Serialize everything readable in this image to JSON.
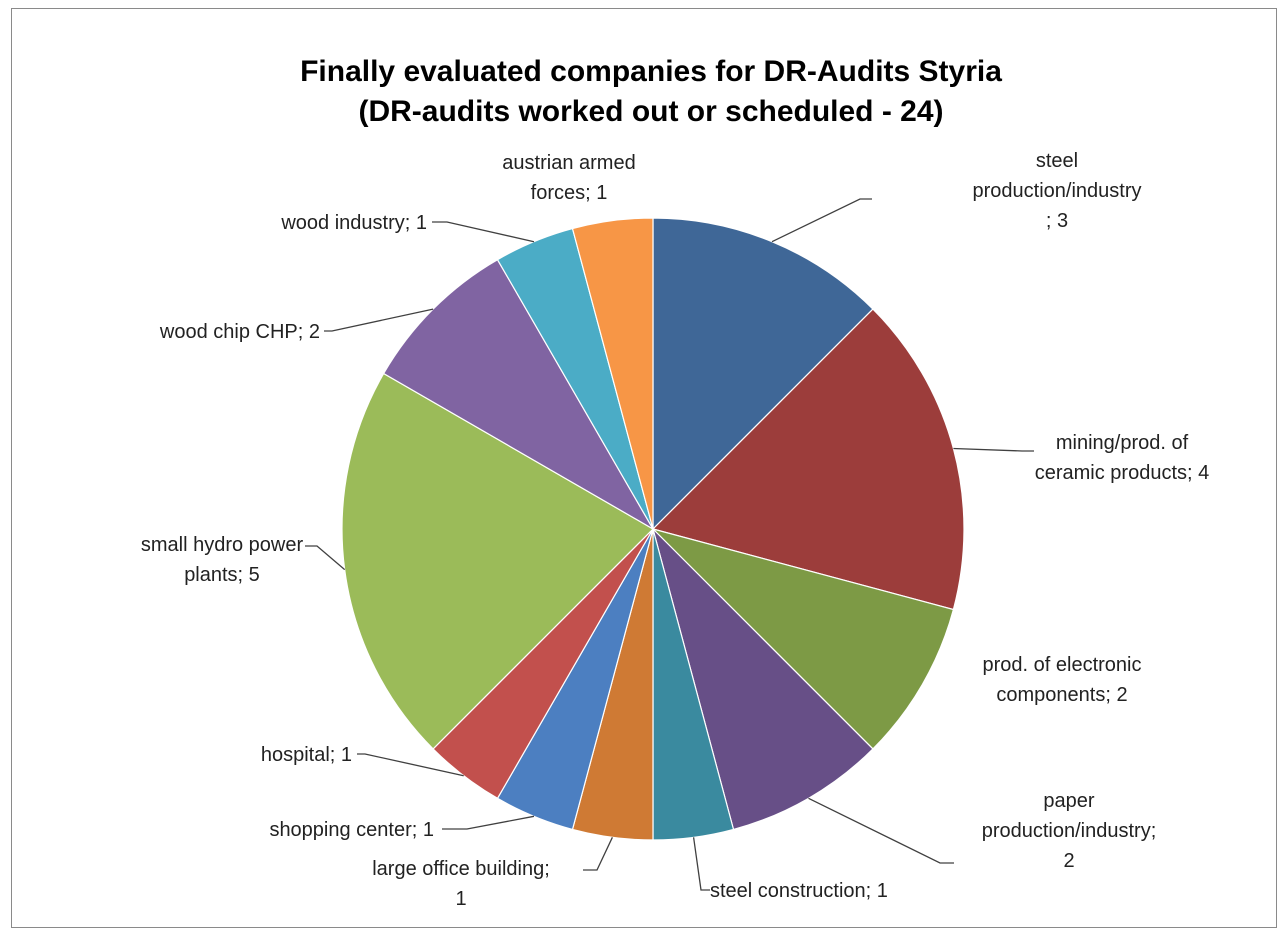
{
  "chart_data": {
    "type": "pie",
    "title": "Finally evaluated companies for DR-Audits Styria",
    "subtitle": "(DR-audits worked out or scheduled - 24)",
    "start": "12 o'clock, clockwise",
    "legend": "none (data labels)",
    "slices": [
      {
        "category": "steel production/industry",
        "value": 3,
        "color": "#3f6797",
        "label_lines": [
          "steel",
          "production/industry",
          "; 3"
        ]
      },
      {
        "category": "mining/prod. of ceramic products",
        "value": 4,
        "color": "#9c3d3b",
        "label_lines": [
          "mining/prod. of",
          "ceramic products; 4"
        ]
      },
      {
        "category": "prod. of electronic components",
        "value": 2,
        "color": "#7d9a45",
        "label_lines": [
          "prod. of electronic",
          "components; 2"
        ]
      },
      {
        "category": "paper production/industry",
        "value": 2,
        "color": "#674f87",
        "label_lines": [
          "paper",
          "production/industry;",
          "2"
        ]
      },
      {
        "category": "steel construction",
        "value": 1,
        "color": "#3a8a9f",
        "label_lines": [
          "steel construction; 1"
        ]
      },
      {
        "category": "large office building",
        "value": 1,
        "color": "#cf7a34",
        "label_lines": [
          "large office building;",
          "1"
        ]
      },
      {
        "category": "shopping center",
        "value": 1,
        "color": "#4c7fc1",
        "label_lines": [
          "shopping center; 1"
        ]
      },
      {
        "category": "hospital",
        "value": 1,
        "color": "#c2504d",
        "label_lines": [
          "hospital; 1"
        ]
      },
      {
        "category": "small hydro power plants",
        "value": 5,
        "color": "#9bbb59",
        "label_lines": [
          "small hydro power",
          "plants; 5"
        ]
      },
      {
        "category": "wood chip CHP",
        "value": 2,
        "color": "#8064a2",
        "label_lines": [
          "wood chip CHP; 2"
        ]
      },
      {
        "category": "wood industry",
        "value": 1,
        "color": "#4bacc6",
        "label_lines": [
          "wood industry; 1"
        ]
      },
      {
        "category": "austrian armed forces",
        "value": 1,
        "color": "#f79646",
        "label_lines": [
          "austrian armed",
          "forces; 1"
        ]
      }
    ]
  }
}
